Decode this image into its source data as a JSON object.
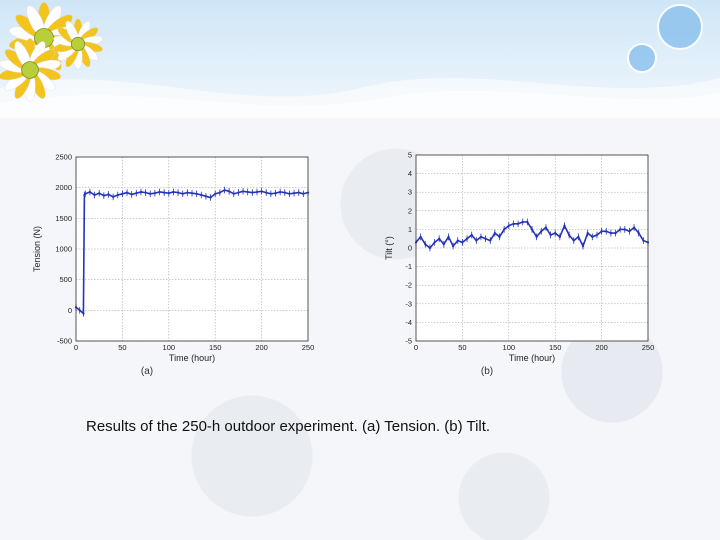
{
  "caption": "Results of the 250-h outdoor experiment. (a) Tension. (b) Tilt.",
  "decor": {
    "flower_petal": "#f3c41c",
    "flower_center": "#b8cf3a",
    "bubble_color": "#8fc3ee"
  },
  "chart_data": [
    {
      "type": "line",
      "sublabel": "(a)",
      "xlabel": "Time (hour)",
      "ylabel": "Tension (N)",
      "xlim": [
        0,
        250
      ],
      "ylim": [
        -500,
        2500
      ],
      "xticks": [
        0,
        50,
        100,
        150,
        200,
        250
      ],
      "yticks": [
        -500,
        0,
        500,
        1000,
        1500,
        2000,
        2500
      ],
      "grid": true,
      "series_color": "#2433b8",
      "series": [
        {
          "x": [
            0,
            4,
            8,
            9,
            10,
            15,
            20,
            25,
            30,
            35,
            40,
            45,
            50,
            55,
            60,
            65,
            70,
            75,
            80,
            85,
            90,
            95,
            100,
            105,
            110,
            115,
            120,
            125,
            130,
            135,
            140,
            145,
            150,
            155,
            160,
            165,
            170,
            175,
            180,
            185,
            190,
            195,
            200,
            205,
            210,
            215,
            220,
            225,
            230,
            235,
            240,
            245,
            250
          ],
          "y": [
            50,
            0,
            -50,
            1880,
            1900,
            1930,
            1880,
            1910,
            1870,
            1890,
            1850,
            1880,
            1900,
            1920,
            1890,
            1910,
            1930,
            1920,
            1900,
            1910,
            1930,
            1920,
            1910,
            1930,
            1920,
            1900,
            1920,
            1910,
            1900,
            1880,
            1860,
            1840,
            1900,
            1920,
            1960,
            1940,
            1900,
            1920,
            1940,
            1930,
            1920,
            1930,
            1940,
            1920,
            1900,
            1910,
            1930,
            1920,
            1900,
            1910,
            1920,
            1900,
            1920
          ]
        }
      ]
    },
    {
      "type": "line",
      "sublabel": "(b)",
      "xlabel": "Time (hour)",
      "ylabel": "Tilt (°)",
      "xlim": [
        0,
        250
      ],
      "ylim": [
        -5,
        5
      ],
      "xticks": [
        0,
        50,
        100,
        150,
        200,
        250
      ],
      "yticks": [
        -5,
        -4,
        -3,
        -2,
        -1,
        0,
        1,
        2,
        3,
        4,
        5
      ],
      "grid": true,
      "series_color": "#2433b8",
      "series": [
        {
          "x": [
            0,
            5,
            10,
            15,
            20,
            25,
            30,
            35,
            40,
            45,
            50,
            55,
            60,
            65,
            70,
            75,
            80,
            85,
            90,
            95,
            100,
            105,
            110,
            115,
            120,
            125,
            130,
            135,
            140,
            145,
            150,
            155,
            160,
            165,
            170,
            175,
            180,
            185,
            190,
            195,
            200,
            205,
            210,
            215,
            220,
            225,
            230,
            235,
            240,
            245,
            250
          ],
          "y": [
            0.3,
            0.6,
            0.2,
            0.0,
            0.3,
            0.5,
            0.2,
            0.6,
            0.1,
            0.4,
            0.3,
            0.5,
            0.7,
            0.4,
            0.6,
            0.5,
            0.4,
            0.8,
            0.6,
            1.0,
            1.2,
            1.3,
            1.3,
            1.4,
            1.4,
            1.0,
            0.6,
            0.9,
            1.1,
            0.7,
            0.8,
            0.6,
            1.2,
            0.7,
            0.4,
            0.6,
            0.1,
            0.8,
            0.6,
            0.7,
            0.9,
            0.9,
            0.8,
            0.8,
            1.0,
            1.0,
            0.9,
            1.1,
            0.8,
            0.4,
            0.3
          ]
        }
      ]
    }
  ]
}
